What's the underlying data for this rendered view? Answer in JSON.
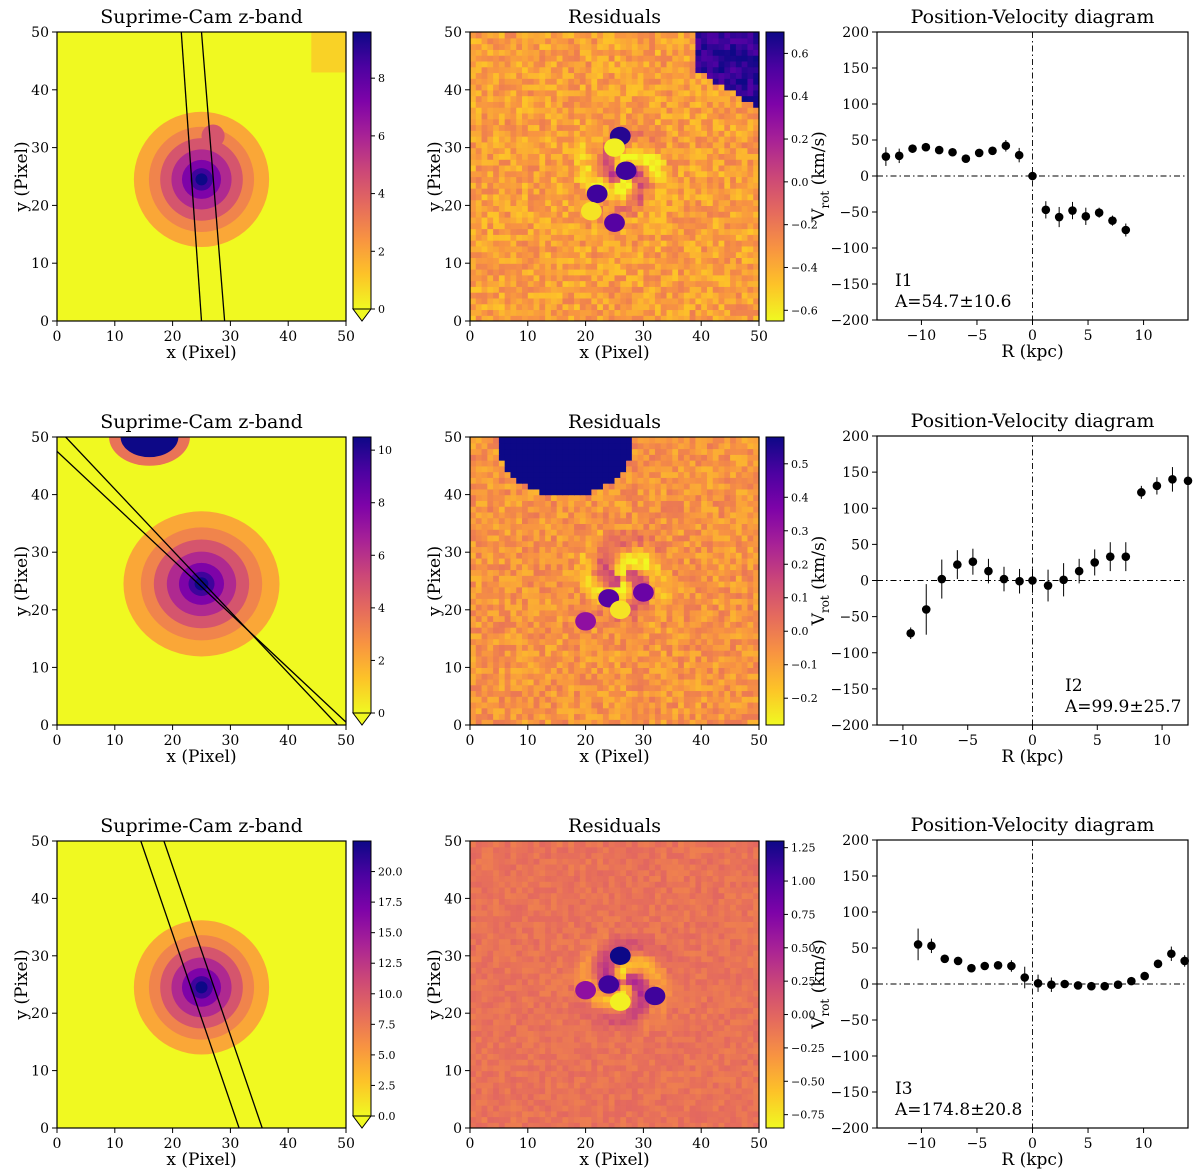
{
  "colormap": {
    "name": "plasma_r",
    "stops": [
      "#f0f921",
      "#fdc328",
      "#f89441",
      "#e56b5d",
      "#cb4778",
      "#a82296",
      "#7e03a8",
      "#4c02a1",
      "#0d0887"
    ]
  },
  "image_panels": [
    {
      "title": "Suprime-Cam z-band",
      "xlabel": "x (Pixel)",
      "ylabel": "y (Pixel)",
      "xticks": [
        "0",
        "10",
        "20",
        "30",
        "40",
        "50"
      ],
      "yticks": [
        "0",
        "10",
        "20",
        "30",
        "40",
        "50"
      ],
      "colorbar_ticks": [
        "0",
        "2",
        "4",
        "6",
        "8"
      ],
      "colorbar_range": [
        0,
        9.6
      ]
    },
    {
      "title": "Residuals",
      "xlabel": "x (Pixel)",
      "ylabel": "y (Pixel)",
      "xticks": [
        "0",
        "10",
        "20",
        "30",
        "40",
        "50"
      ],
      "yticks": [
        "0",
        "10",
        "20",
        "30",
        "40",
        "50"
      ],
      "colorbar_ticks": [
        "−0.6",
        "−0.4",
        "−0.2",
        "0.0",
        "0.2",
        "0.4",
        "0.6"
      ],
      "colorbar_range": [
        -0.65,
        0.7
      ]
    },
    {
      "title": "Suprime-Cam z-band",
      "xlabel": "x (Pixel)",
      "ylabel": "y (Pixel)",
      "xticks": [
        "0",
        "10",
        "20",
        "30",
        "40",
        "50"
      ],
      "yticks": [
        "0",
        "10",
        "20",
        "30",
        "40",
        "50"
      ],
      "colorbar_ticks": [
        "0",
        "2",
        "4",
        "6",
        "8",
        "10"
      ],
      "colorbar_range": [
        0,
        10.5
      ]
    },
    {
      "title": "Residuals",
      "xlabel": "x (Pixel)",
      "ylabel": "y (Pixel)",
      "xticks": [
        "0",
        "10",
        "20",
        "30",
        "40",
        "50"
      ],
      "yticks": [
        "0",
        "10",
        "20",
        "30",
        "40",
        "50"
      ],
      "colorbar_ticks": [
        "−0.2",
        "−0.1",
        "0.0",
        "0.1",
        "0.2",
        "0.3",
        "0.4",
        "0.5"
      ],
      "colorbar_range": [
        -0.28,
        0.58
      ]
    },
    {
      "title": "Suprime-Cam z-band",
      "xlabel": "x (Pixel)",
      "ylabel": "y (Pixel)",
      "xticks": [
        "0",
        "10",
        "20",
        "30",
        "40",
        "50"
      ],
      "yticks": [
        "0",
        "10",
        "20",
        "30",
        "40",
        "50"
      ],
      "colorbar_ticks": [
        "0.0",
        "2.5",
        "5.0",
        "7.5",
        "10.0",
        "12.5",
        "15.0",
        "17.5",
        "20.0"
      ],
      "colorbar_range": [
        0,
        22.5
      ]
    },
    {
      "title": "Residuals",
      "xlabel": "x (Pixel)",
      "ylabel": "y (Pixel)",
      "xticks": [
        "0",
        "10",
        "20",
        "30",
        "40",
        "50"
      ],
      "yticks": [
        "0",
        "10",
        "20",
        "30",
        "40",
        "50"
      ],
      "colorbar_ticks": [
        "−0.75",
        "−0.50",
        "−0.25",
        "0.00",
        "0.25",
        "0.50",
        "0.75",
        "1.00",
        "1.25"
      ],
      "colorbar_range": [
        -0.85,
        1.3
      ]
    }
  ],
  "chart_data": [
    {
      "type": "scatter",
      "title": "Position-Velocity diagram",
      "xlabel": "R (kpc)",
      "ylabel": "V",
      "ylabel_sub": "rot",
      "ylabel_unit": " (km/s)",
      "xlim": [
        -14,
        14
      ],
      "ylim": [
        -200,
        200
      ],
      "xticks": [
        -10,
        -5,
        0,
        5,
        10
      ],
      "yticks": [
        -200,
        -150,
        -100,
        -50,
        0,
        50,
        100,
        150,
        200
      ],
      "xtick_labels": [
        "−10",
        "−5",
        "0",
        "5",
        "10"
      ],
      "ytick_labels": [
        "−200",
        "−150",
        "−100",
        "−50",
        "0",
        "50",
        "100",
        "150",
        "200"
      ],
      "annotation": [
        "I1",
        "A=54.7±10.6"
      ],
      "points": [
        {
          "x": -13.2,
          "y": 27,
          "err": 13
        },
        {
          "x": -12.0,
          "y": 28,
          "err": 10
        },
        {
          "x": -10.8,
          "y": 38,
          "err": 5
        },
        {
          "x": -9.6,
          "y": 40,
          "err": 5
        },
        {
          "x": -8.4,
          "y": 36,
          "err": 5
        },
        {
          "x": -7.2,
          "y": 33,
          "err": 5
        },
        {
          "x": -6.0,
          "y": 24,
          "err": 5
        },
        {
          "x": -4.8,
          "y": 32,
          "err": 5
        },
        {
          "x": -3.6,
          "y": 35,
          "err": 5
        },
        {
          "x": -2.4,
          "y": 42,
          "err": 8
        },
        {
          "x": -1.2,
          "y": 29,
          "err": 10
        },
        {
          "x": 0.0,
          "y": 0,
          "err": 4
        },
        {
          "x": 1.2,
          "y": -47,
          "err": 12
        },
        {
          "x": 2.4,
          "y": -57,
          "err": 14
        },
        {
          "x": 3.6,
          "y": -48,
          "err": 12
        },
        {
          "x": 4.8,
          "y": -56,
          "err": 12
        },
        {
          "x": 6.0,
          "y": -51,
          "err": 7
        },
        {
          "x": 7.2,
          "y": -62,
          "err": 7
        },
        {
          "x": 8.4,
          "y": -75,
          "err": 9
        }
      ]
    },
    {
      "type": "scatter",
      "title": "Position-Velocity diagram",
      "xlabel": "R (kpc)",
      "ylabel": "V",
      "ylabel_sub": "rot",
      "ylabel_unit": " (km/s)",
      "xlim": [
        -12,
        12
      ],
      "ylim": [
        -200,
        200
      ],
      "xticks": [
        -10,
        -5,
        0,
        5,
        10
      ],
      "yticks": [
        -200,
        -150,
        -100,
        -50,
        0,
        50,
        100,
        150,
        200
      ],
      "xtick_labels": [
        "−10",
        "−5",
        "0",
        "5",
        "10"
      ],
      "ytick_labels": [
        "−200",
        "−150",
        "−100",
        "−50",
        "0",
        "50",
        "100",
        "150",
        "200"
      ],
      "annotation": [
        "I2",
        "A=99.9±25.7"
      ],
      "points": [
        {
          "x": -9.4,
          "y": -73,
          "err": 8
        },
        {
          "x": -8.2,
          "y": -40,
          "err": 35
        },
        {
          "x": -7.0,
          "y": 2,
          "err": 27
        },
        {
          "x": -5.8,
          "y": 22,
          "err": 20
        },
        {
          "x": -4.6,
          "y": 26,
          "err": 18
        },
        {
          "x": -3.4,
          "y": 13,
          "err": 17
        },
        {
          "x": -2.2,
          "y": 2,
          "err": 17
        },
        {
          "x": -1.0,
          "y": -1,
          "err": 17
        },
        {
          "x": 0.0,
          "y": 0,
          "err": 17
        },
        {
          "x": 1.2,
          "y": -7,
          "err": 22
        },
        {
          "x": 2.4,
          "y": 1,
          "err": 23
        },
        {
          "x": 3.6,
          "y": 13,
          "err": 17
        },
        {
          "x": 4.8,
          "y": 25,
          "err": 18
        },
        {
          "x": 6.0,
          "y": 33,
          "err": 20
        },
        {
          "x": 7.2,
          "y": 33,
          "err": 20
        },
        {
          "x": 8.4,
          "y": 122,
          "err": 9
        },
        {
          "x": 9.6,
          "y": 131,
          "err": 12
        },
        {
          "x": 10.8,
          "y": 140,
          "err": 17
        },
        {
          "x": 12.0,
          "y": 138,
          "err": 33
        }
      ]
    },
    {
      "type": "scatter",
      "title": "Position-Velocity diagram",
      "xlabel": "R (kpc)",
      "ylabel": "V",
      "ylabel_sub": "rot",
      "ylabel_unit": " (km/s)",
      "xlim": [
        -14,
        14
      ],
      "ylim": [
        -200,
        200
      ],
      "xticks": [
        -10,
        -5,
        0,
        5,
        10
      ],
      "yticks": [
        -200,
        -150,
        -100,
        -50,
        0,
        50,
        100,
        150,
        200
      ],
      "xtick_labels": [
        "−10",
        "−5",
        "0",
        "5",
        "10"
      ],
      "ytick_labels": [
        "−200",
        "−150",
        "−100",
        "−50",
        "0",
        "50",
        "100",
        "150",
        "200"
      ],
      "annotation": [
        "I3",
        "A=174.8±20.8"
      ],
      "points": [
        {
          "x": -10.3,
          "y": 55,
          "err": 22
        },
        {
          "x": -9.1,
          "y": 53,
          "err": 10
        },
        {
          "x": -7.9,
          "y": 35,
          "err": 5
        },
        {
          "x": -6.7,
          "y": 32,
          "err": 5
        },
        {
          "x": -5.5,
          "y": 22,
          "err": 5
        },
        {
          "x": -4.3,
          "y": 25,
          "err": 5
        },
        {
          "x": -3.1,
          "y": 26,
          "err": 5
        },
        {
          "x": -1.9,
          "y": 25,
          "err": 8
        },
        {
          "x": -0.7,
          "y": 9,
          "err": 15
        },
        {
          "x": 0.5,
          "y": 1,
          "err": 12
        },
        {
          "x": 1.7,
          "y": -1,
          "err": 10
        },
        {
          "x": 2.9,
          "y": 0,
          "err": 5
        },
        {
          "x": 4.1,
          "y": -2,
          "err": 4
        },
        {
          "x": 5.3,
          "y": -3,
          "err": 4
        },
        {
          "x": 6.5,
          "y": -3,
          "err": 4
        },
        {
          "x": 7.7,
          "y": -1,
          "err": 4
        },
        {
          "x": 8.9,
          "y": 4,
          "err": 4
        },
        {
          "x": 10.1,
          "y": 11,
          "err": 4
        },
        {
          "x": 11.3,
          "y": 28,
          "err": 6
        },
        {
          "x": 12.5,
          "y": 42,
          "err": 10
        },
        {
          "x": 13.7,
          "y": 32,
          "err": 8
        }
      ]
    }
  ]
}
